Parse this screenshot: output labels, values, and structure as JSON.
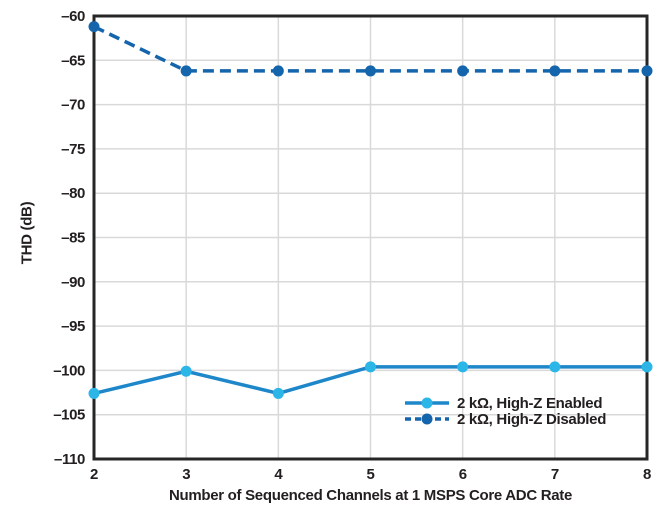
{
  "chart_data": {
    "type": "line",
    "title": "",
    "xlabel": "Number of Sequenced Channels at 1 MSPS Core ADC Rate",
    "ylabel": "THD (dB)",
    "xlim": [
      2,
      8
    ],
    "ylim": [
      -110,
      -60
    ],
    "grid": true,
    "legend_position": "lower right",
    "x": [
      2,
      3,
      4,
      5,
      6,
      7,
      8
    ],
    "x_ticks": [
      {
        "label": "2",
        "value": 2
      },
      {
        "label": "3",
        "value": 3
      },
      {
        "label": "4",
        "value": 4
      },
      {
        "label": "5",
        "value": 5
      },
      {
        "label": "6",
        "value": 6
      },
      {
        "label": "7",
        "value": 7
      },
      {
        "label": "8",
        "value": 8
      }
    ],
    "y_ticks": [
      {
        "label": "–60",
        "value": -60
      },
      {
        "label": "–65",
        "value": -65
      },
      {
        "label": "–70",
        "value": -70
      },
      {
        "label": "–75",
        "value": -75
      },
      {
        "label": "–80",
        "value": -80
      },
      {
        "label": "–85",
        "value": -85
      },
      {
        "label": "–90",
        "value": -90
      },
      {
        "label": "–95",
        "value": -95
      },
      {
        "label": "–100",
        "value": -100
      },
      {
        "label": "–105",
        "value": -105
      },
      {
        "label": "–110",
        "value": -110
      }
    ],
    "series": [
      {
        "name": "2 kΩ, High-Z Enabled",
        "style": "solid",
        "line_color": "#1e87c9",
        "marker_color": "#2cb6e8",
        "values": [
          -102.6,
          -100.1,
          -102.6,
          -99.6,
          -99.6,
          -99.6,
          -99.6
        ]
      },
      {
        "name": "2 kΩ, High-Z Disabled",
        "style": "dashed",
        "line_color": "#1565ad",
        "marker_color": "#1565ad",
        "values": [
          -61.2,
          -66.2,
          -66.2,
          -66.2,
          -66.2,
          -66.2,
          -66.2
        ]
      }
    ]
  },
  "colors": {
    "background": "#ffffff",
    "grid": "#d9d9d9",
    "border": "#262626",
    "text": "#231f20"
  }
}
